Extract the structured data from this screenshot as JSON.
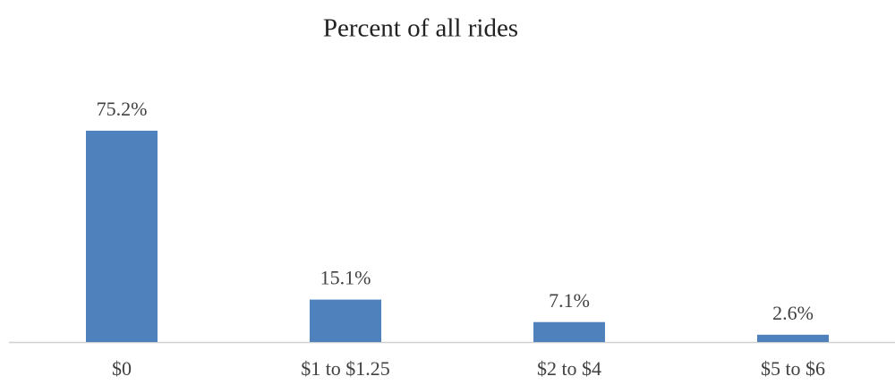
{
  "chart_data": {
    "type": "bar",
    "title": "Percent of all rides",
    "categories": [
      "$0",
      "$1 to $1.25",
      "$2 to $4",
      "$5 to $6"
    ],
    "values": [
      75.2,
      15.1,
      7.1,
      2.6
    ],
    "value_labels": [
      "75.2%",
      "15.1%",
      "7.1%",
      "2.6%"
    ],
    "color": "#4f81bd"
  }
}
